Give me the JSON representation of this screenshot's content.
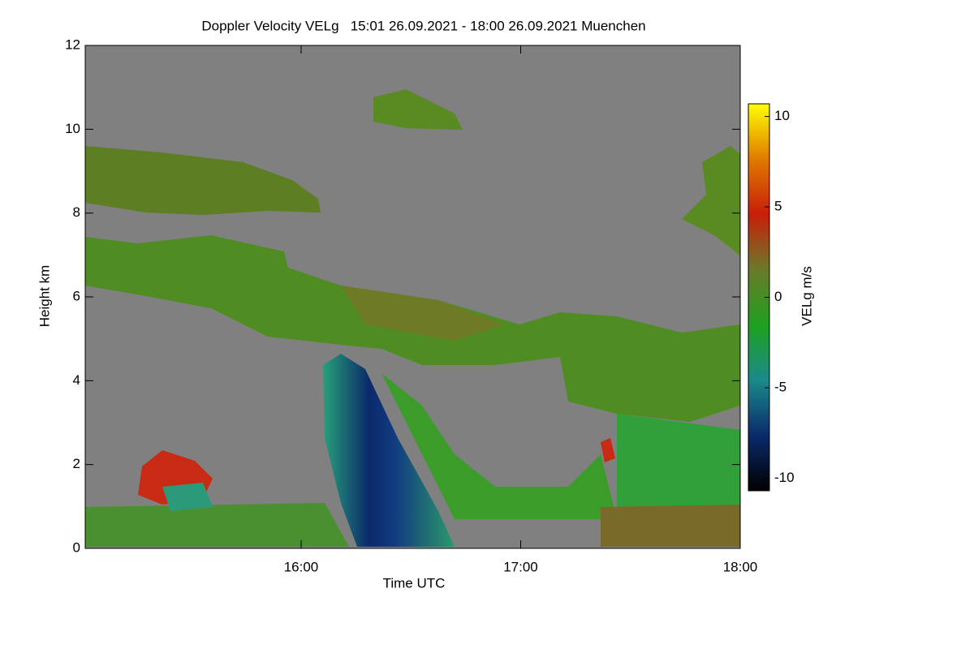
{
  "chart_data": {
    "type": "heatmap",
    "title": "Doppler Velocity VELg   15:01 26.09.2021 - 18:00 26.09.2021 Muenchen",
    "xlabel": "Time UTC",
    "ylabel": "Height km",
    "xlim": [
      "15:01",
      "18:00"
    ],
    "xticks": [
      "16:00",
      "17:00",
      "18:00"
    ],
    "ylim": [
      0,
      12
    ],
    "yticks": [
      0,
      2,
      4,
      6,
      8,
      10,
      12
    ],
    "colorbar": {
      "label": "VELg m/s",
      "lim": [
        -10.7,
        10.7
      ],
      "ticks": [
        -10,
        -5,
        0,
        5,
        10
      ],
      "colormap": [
        "#000000",
        "#0b2a6b",
        "#1a8a8a",
        "#1fa01f",
        "#6b7a2a",
        "#c81e0a",
        "#e07a00",
        "#ffff00"
      ]
    }
  }
}
